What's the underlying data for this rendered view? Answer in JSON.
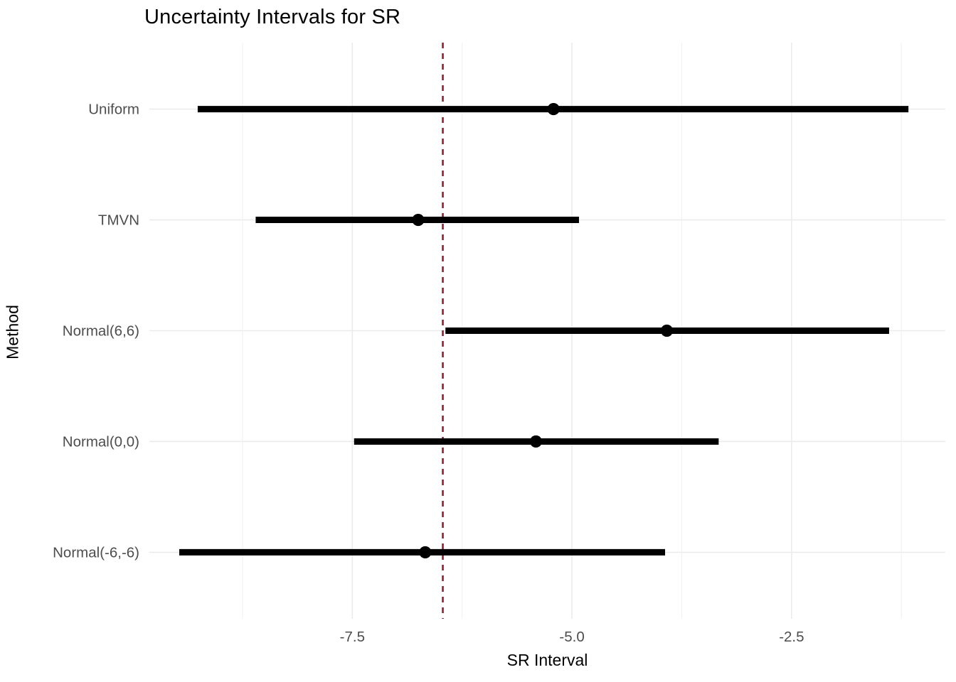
{
  "chart_data": {
    "type": "scatter",
    "style": "horizontal-interval-forest-plot",
    "title": "Uncertainty Intervals for SR",
    "xlabel": "SR Interval",
    "ylabel": "Method",
    "categories": [
      "Uniform",
      "TMVN",
      "Normal(6,6)",
      "Normal(0,0)",
      "Normal(-6,-6)"
    ],
    "intervals": [
      {
        "method": "Uniform",
        "low": -9.26,
        "mid": -5.21,
        "high": -1.17
      },
      {
        "method": "TMVN",
        "low": -8.6,
        "mid": -6.75,
        "high": -4.92
      },
      {
        "method": "Normal(6,6)",
        "low": -6.44,
        "mid": -3.92,
        "high": -1.39
      },
      {
        "method": "Normal(0,0)",
        "low": -7.48,
        "mid": -5.41,
        "high": -3.33
      },
      {
        "method": "Normal(-6,-6)",
        "low": -9.47,
        "mid": -6.67,
        "high": -3.94
      }
    ],
    "reference_line": {
      "x": -6.47,
      "style": "dashed",
      "color": "#9B1B30"
    },
    "x_ticks": [
      -7.5,
      -5.0,
      -2.5
    ],
    "x_tick_labels": [
      "-7.5",
      "-5.0",
      "-2.5"
    ],
    "x_minor_ticks": [
      -8.75,
      -6.25,
      -3.75,
      -1.25
    ],
    "xlim": [
      -9.81,
      -0.75
    ],
    "grid": {
      "show": true,
      "major_color": "#EBEBEB",
      "minor_color": "#F1F1F1"
    },
    "legend": "none",
    "colors": {
      "interval": "#000000",
      "point": "#000000",
      "background": "#FFFFFF",
      "axis_text": "#4D4D4D",
      "title_text": "#000000"
    }
  }
}
